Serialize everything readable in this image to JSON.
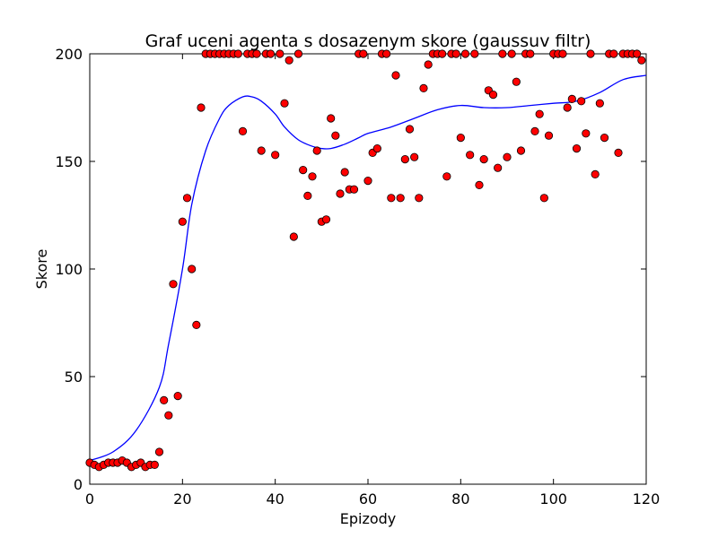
{
  "chart_data": {
    "type": "scatter",
    "title": "Graf uceni agenta s dosazenym skore (gaussuv filtr)",
    "xlabel": "Epizody",
    "ylabel": "Skore",
    "xlim": [
      0,
      120
    ],
    "ylim": [
      0,
      200
    ],
    "xticks": [
      0,
      20,
      40,
      60,
      80,
      100,
      120
    ],
    "yticks": [
      0,
      50,
      100,
      150,
      200
    ],
    "grid": false,
    "legend": "none",
    "colors": {
      "points": "#ff0000",
      "point_edge": "#000000",
      "line": "#0000ff"
    },
    "series": [
      {
        "kind": "scatter",
        "x": [
          0,
          1,
          2,
          3,
          4,
          5,
          6,
          7,
          8,
          9,
          10,
          11,
          12,
          13,
          14,
          15,
          16,
          17,
          18,
          19,
          20,
          21,
          22,
          23,
          24,
          25,
          26,
          27,
          28,
          29,
          30,
          31,
          32,
          33,
          34,
          35,
          36,
          37,
          38,
          39,
          40,
          41,
          42,
          43,
          44,
          45,
          46,
          47,
          48,
          49,
          50,
          51,
          52,
          53,
          54,
          55,
          56,
          57,
          58,
          59,
          60,
          61,
          62,
          63,
          64,
          65,
          66,
          67,
          68,
          69,
          70,
          71,
          72,
          73,
          74,
          75,
          76,
          77,
          78,
          79,
          80,
          81,
          82,
          83,
          84,
          85,
          86,
          87,
          88,
          89,
          90,
          91,
          92,
          93,
          94,
          95,
          96,
          97,
          98,
          99,
          100,
          101,
          102,
          103,
          104,
          105,
          106,
          107,
          108,
          109,
          110,
          111,
          112,
          113,
          114,
          115,
          116,
          117,
          118,
          119
        ],
        "values": [
          10,
          9,
          8,
          9,
          10,
          10,
          10,
          11,
          10,
          8,
          9,
          10,
          8,
          9,
          9,
          15,
          39,
          32,
          93,
          41,
          122,
          133,
          100,
          74,
          175,
          200,
          200,
          200,
          200,
          200,
          200,
          200,
          200,
          164,
          200,
          200,
          200,
          155,
          200,
          200,
          153,
          200,
          177,
          197,
          115,
          200,
          146,
          134,
          143,
          155,
          122,
          123,
          170,
          162,
          135,
          145,
          137,
          137,
          200,
          200,
          141,
          154,
          156,
          200,
          200,
          133,
          190,
          133,
          151,
          165,
          152,
          133,
          184,
          195,
          200,
          200,
          200,
          143,
          200,
          200,
          161,
          200,
          153,
          200,
          139,
          151,
          183,
          181,
          147,
          200,
          152,
          200,
          187,
          155,
          200,
          200,
          164,
          172,
          133,
          162,
          200,
          200,
          200,
          175,
          179,
          156,
          178,
          163,
          200,
          144,
          177,
          161,
          200,
          200,
          154,
          200,
          200,
          200,
          200,
          197
        ]
      },
      {
        "kind": "line",
        "x": [
          0,
          5,
          10,
          15,
          17,
          20,
          22,
          25,
          28,
          30,
          33,
          35,
          37,
          40,
          42,
          45,
          48,
          50,
          52,
          55,
          58,
          60,
          65,
          70,
          75,
          80,
          85,
          90,
          95,
          100,
          105,
          110,
          115,
          120
        ],
        "values": [
          11,
          15,
          25,
          45,
          65,
          100,
          130,
          155,
          170,
          176,
          180,
          180,
          178,
          172,
          166,
          160,
          157,
          156,
          156,
          158,
          161,
          163,
          166,
          170,
          174,
          176,
          175,
          175,
          176,
          177,
          178,
          182,
          188,
          190
        ]
      }
    ]
  }
}
